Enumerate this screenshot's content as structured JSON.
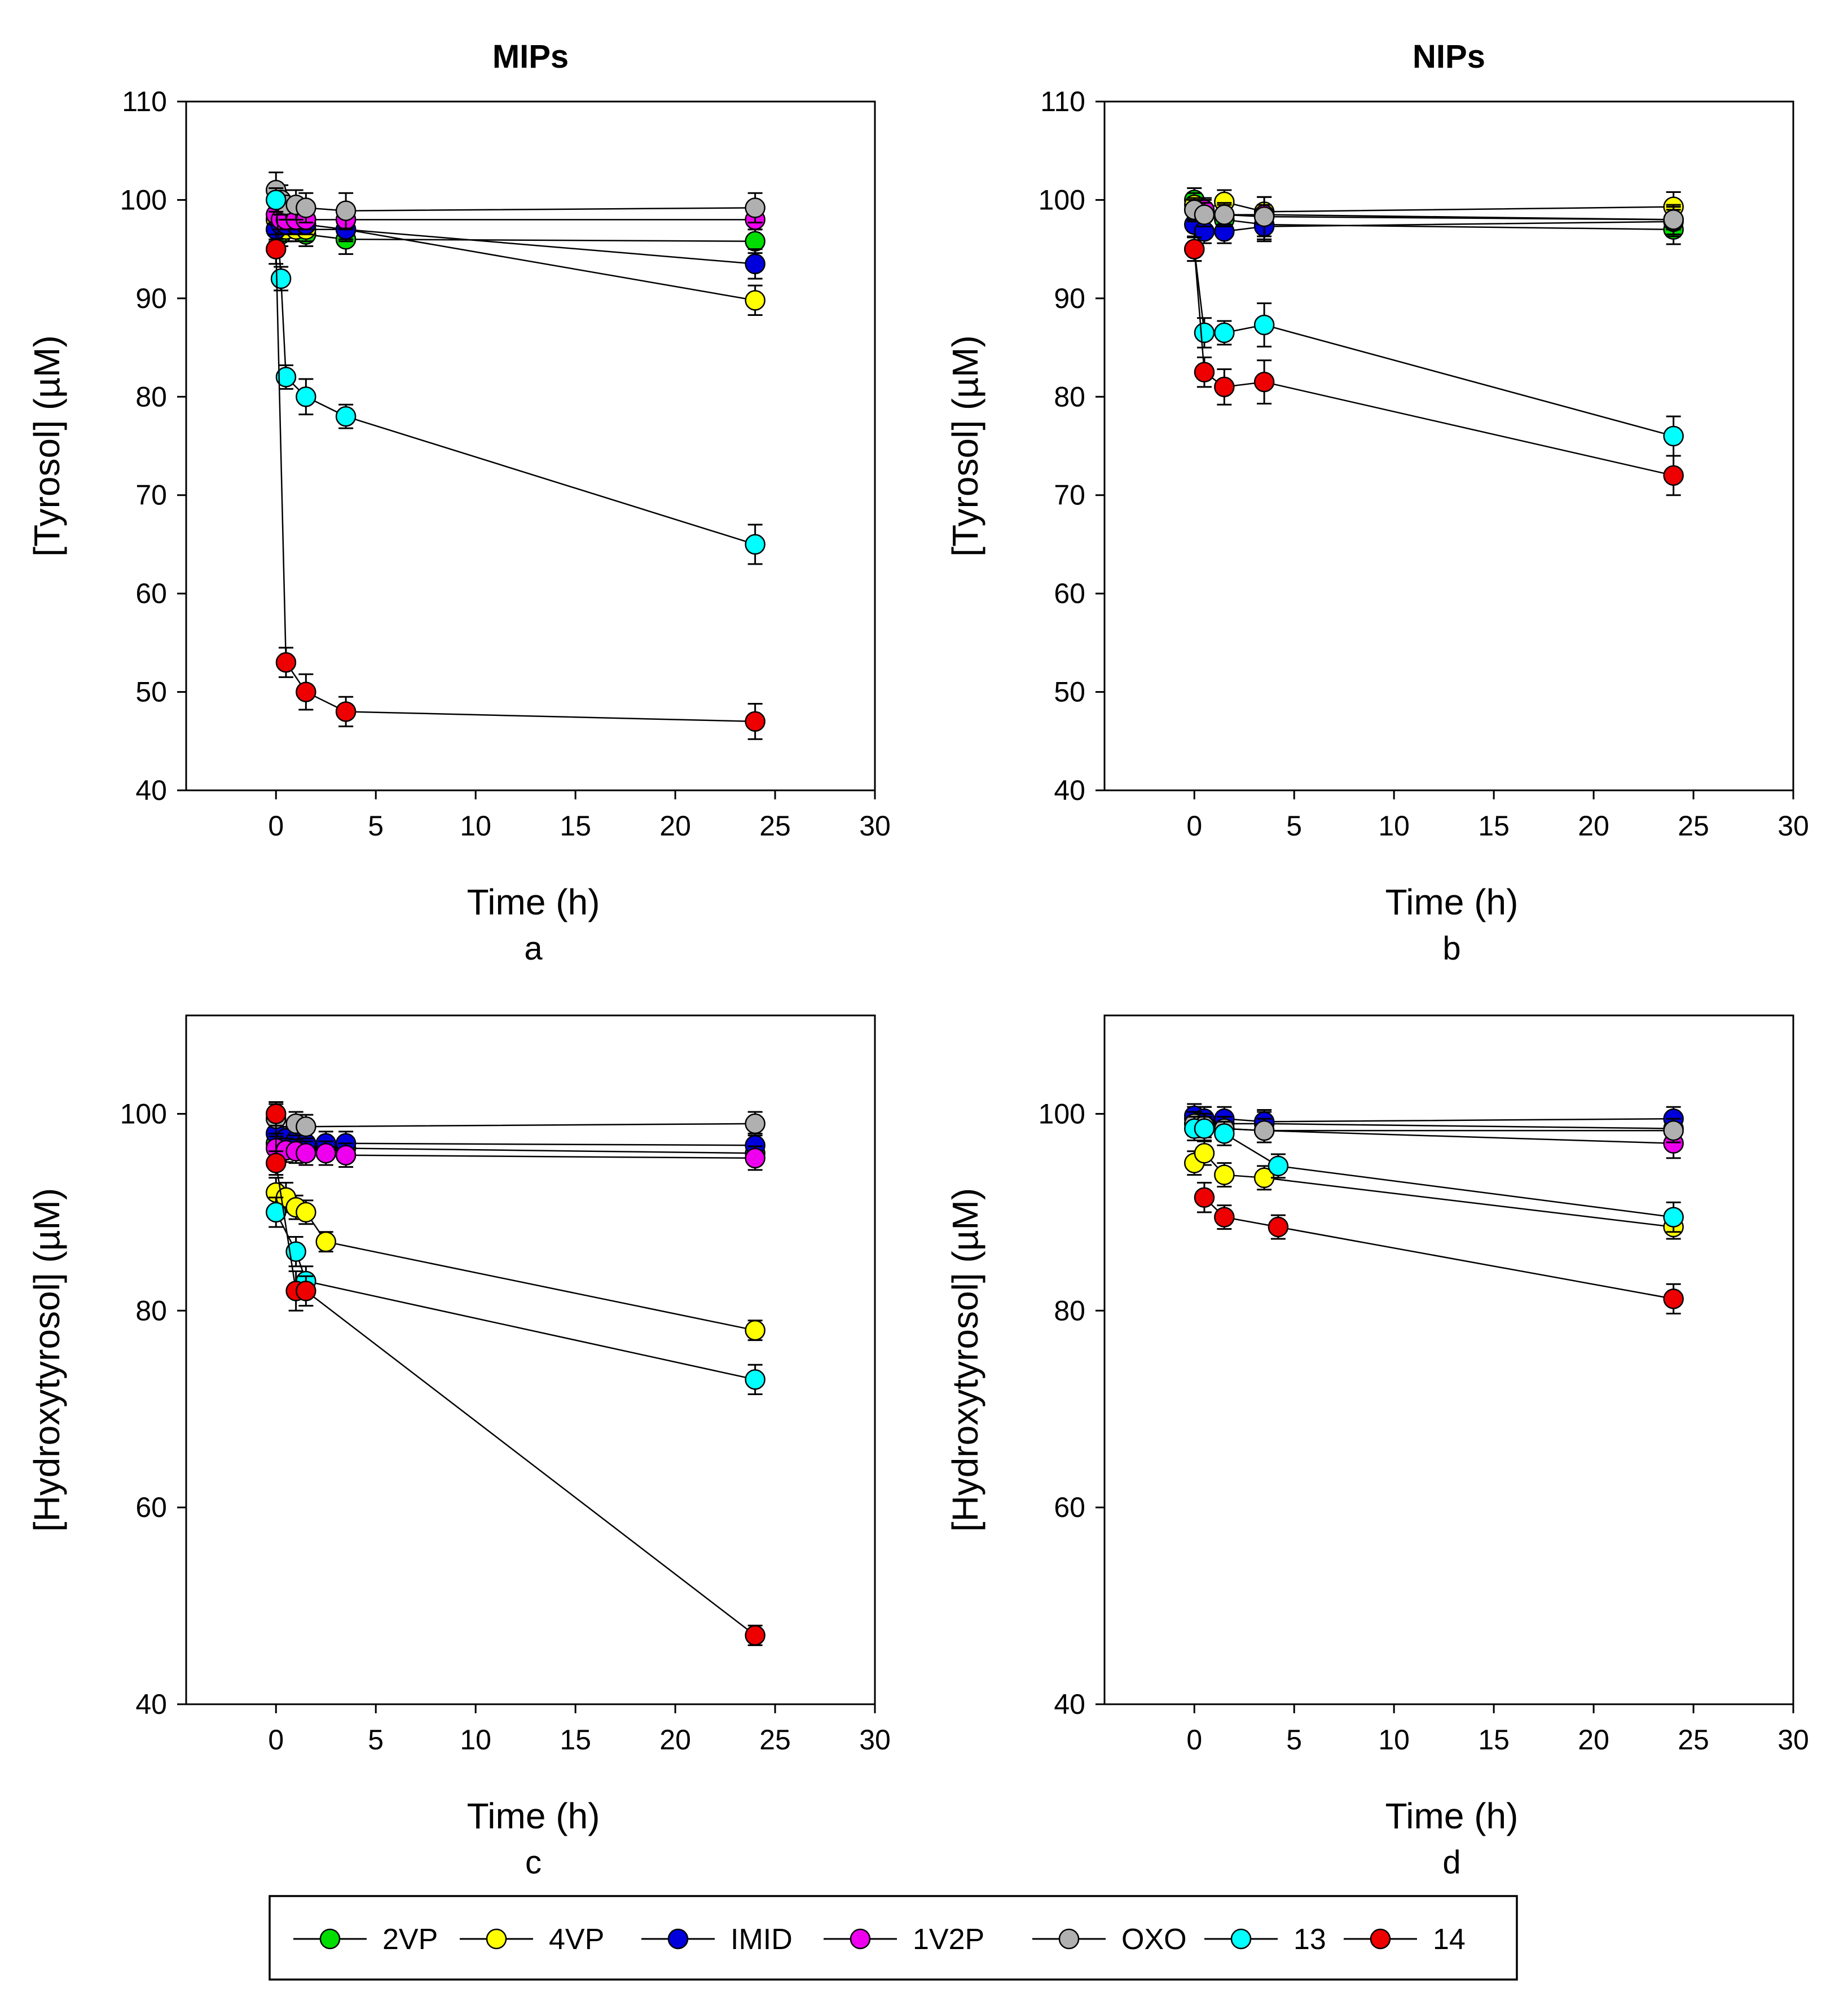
{
  "chart_data": [
    {
      "panel": "a",
      "type": "line",
      "title": "MIPs",
      "xlabel": "Time (h)",
      "ylabel": "[Tyrosol] (µM)",
      "xlim": [
        -4.5,
        30
      ],
      "ylim": [
        40,
        110
      ],
      "xticks": [
        0,
        5,
        10,
        15,
        20,
        25,
        30
      ],
      "yticks": [
        40,
        50,
        60,
        70,
        80,
        90,
        100,
        110
      ],
      "series": [
        {
          "name": "2VP",
          "x": [
            0,
            0.25,
            0.5,
            1,
            1.5,
            3.5,
            24
          ],
          "y": [
            97,
            96.5,
            97,
            97,
            96.5,
            96,
            95.8
          ],
          "err": [
            1.2,
            1.2,
            1.2,
            1.2,
            1.2,
            1.5,
            1.2
          ]
        },
        {
          "name": "4VP",
          "x": [
            0,
            0.25,
            0.5,
            1,
            1.5,
            3.5,
            24
          ],
          "y": [
            98,
            97.5,
            97,
            97,
            97,
            97,
            89.8
          ],
          "err": [
            1.2,
            1.2,
            1.2,
            1.2,
            1.2,
            1.2,
            1.5
          ]
        },
        {
          "name": "IMID",
          "x": [
            0,
            0.25,
            0.5,
            1,
            1.5,
            3.5,
            24
          ],
          "y": [
            97,
            97.5,
            97.5,
            97.5,
            97.5,
            97,
            93.5
          ],
          "err": [
            1,
            1,
            1,
            1,
            1,
            1,
            1.5
          ]
        },
        {
          "name": "1V2P",
          "x": [
            0,
            0.25,
            0.5,
            1,
            1.5,
            3.5,
            24
          ],
          "y": [
            98.5,
            98,
            98,
            98,
            98,
            98,
            98
          ],
          "err": [
            1,
            1,
            1,
            1,
            1,
            1,
            1
          ]
        },
        {
          "name": "OXO",
          "x": [
            0,
            0.25,
            0.5,
            1,
            1.5,
            3.5,
            24
          ],
          "y": [
            101,
            100,
            99.5,
            99.5,
            99.2,
            98.9,
            99.2
          ],
          "err": [
            1.8,
            1.5,
            1.5,
            1.5,
            1.5,
            1.8,
            1.5
          ]
        },
        {
          "name": "13",
          "x": [
            0,
            0.25,
            0.5,
            1.5,
            3.5,
            24
          ],
          "y": [
            100,
            92,
            82,
            80,
            78,
            65
          ],
          "err": [
            1.2,
            1.2,
            1.2,
            1.8,
            1.2,
            2
          ]
        },
        {
          "name": "14",
          "x": [
            0,
            0.5,
            1.5,
            3.5,
            24
          ],
          "y": [
            95,
            53,
            50,
            48,
            47
          ],
          "err": [
            1.5,
            1.5,
            1.8,
            1.5,
            1.8
          ]
        }
      ]
    },
    {
      "panel": "b",
      "type": "line",
      "title": "NIPs",
      "xlabel": "Time (h)",
      "ylabel": "[Tyrosol] (µM)",
      "xlim": [
        -4.5,
        30
      ],
      "ylim": [
        40,
        110
      ],
      "xticks": [
        0,
        5,
        10,
        15,
        20,
        25,
        30
      ],
      "yticks": [
        40,
        50,
        60,
        70,
        80,
        90,
        100,
        110
      ],
      "series": [
        {
          "name": "2VP",
          "x": [
            0,
            0.5,
            1.5,
            3.5,
            24
          ],
          "y": [
            100,
            98.5,
            98,
            97.5,
            97
          ],
          "err": [
            1.2,
            1.2,
            1.2,
            1.5,
            1.5
          ]
        },
        {
          "name": "4VP",
          "x": [
            0,
            0.5,
            1.5,
            3.5,
            24
          ],
          "y": [
            99.5,
            99,
            99.8,
            98.8,
            99.3
          ],
          "err": [
            1.2,
            1.2,
            1.2,
            1.5,
            1.5
          ]
        },
        {
          "name": "IMID",
          "x": [
            0,
            0.5,
            1.5,
            3.5,
            24
          ],
          "y": [
            97.5,
            96.8,
            96.8,
            97.3,
            97.8
          ],
          "err": [
            1.2,
            1.2,
            1.2,
            1.5,
            1.5
          ]
        },
        {
          "name": "1V2P",
          "x": [
            0,
            0.5,
            1.5,
            3.5,
            24
          ],
          "y": [
            99,
            99,
            98.5,
            98.5,
            98
          ],
          "err": [
            1,
            1,
            1,
            1,
            1
          ]
        },
        {
          "name": "OXO",
          "x": [
            0,
            0.5,
            1.5,
            3.5,
            24
          ],
          "y": [
            99,
            98.5,
            98.5,
            98.3,
            98
          ],
          "err": [
            1.2,
            1.2,
            1.2,
            2,
            1.5
          ]
        },
        {
          "name": "13",
          "x": [
            0,
            0.5,
            1.5,
            3.5,
            24
          ],
          "y": [
            95,
            86.5,
            86.5,
            87.3,
            76
          ],
          "err": [
            1.2,
            1.5,
            1.2,
            2.2,
            2
          ]
        },
        {
          "name": "14",
          "x": [
            0,
            0.5,
            1.5,
            3.5,
            24
          ],
          "y": [
            95,
            82.5,
            81,
            81.5,
            72
          ],
          "err": [
            1.2,
            1.5,
            1.8,
            2.2,
            2
          ]
        }
      ]
    },
    {
      "panel": "c",
      "type": "line",
      "xlabel": "Time (h)",
      "ylabel": "[Hydroxytyrosol] (µM)",
      "xlim": [
        -4.5,
        30
      ],
      "ylim": [
        40,
        110
      ],
      "xticks": [
        0,
        5,
        10,
        15,
        20,
        25,
        30
      ],
      "yticks": [
        40,
        60,
        80,
        100
      ],
      "series": [
        {
          "name": "2VP",
          "x": [
            0,
            0.5,
            1,
            1.5,
            2.5,
            3.5,
            24
          ],
          "y": [
            97,
            97,
            96.5,
            96.5,
            96.5,
            96.5,
            96
          ],
          "err": [
            1,
            1,
            1,
            1,
            1,
            1,
            1
          ]
        },
        {
          "name": "4VP",
          "x": [
            0,
            0.5,
            1,
            1.5,
            2.5,
            24
          ],
          "y": [
            92,
            91.5,
            90.5,
            90,
            87,
            78
          ],
          "err": [
            1.5,
            1.5,
            1.2,
            1.2,
            1,
            1
          ]
        },
        {
          "name": "IMID",
          "x": [
            0,
            0.5,
            1,
            1.5,
            2.5,
            3.5,
            24
          ],
          "y": [
            98,
            97.5,
            97.3,
            97,
            97,
            97,
            96.8
          ],
          "err": [
            1.5,
            1.2,
            1.2,
            1.2,
            1.2,
            1.2,
            1.2
          ]
        },
        {
          "name": "1V2P",
          "x": [
            0,
            0.5,
            1,
            1.5,
            2.5,
            3.5,
            24
          ],
          "y": [
            96.5,
            96.3,
            96.2,
            96,
            96,
            95.8,
            95.5
          ],
          "err": [
            1.2,
            1.2,
            1.2,
            1.2,
            1.2,
            1.2,
            1.2
          ]
        },
        {
          "name": "OXO",
          "x": [
            0,
            1,
            1.5,
            24
          ],
          "y": [
            99.5,
            99,
            98.7,
            99
          ],
          "err": [
            1.5,
            1.2,
            1.2,
            1.2
          ]
        },
        {
          "name": "13",
          "x": [
            0,
            1,
            1.5,
            24
          ],
          "y": [
            90,
            86,
            83,
            73
          ],
          "err": [
            1.5,
            1.5,
            1.5,
            1.5
          ]
        },
        {
          "name": "14",
          "x": [
            0,
            0,
            1,
            1.5,
            24
          ],
          "y": [
            100,
            95,
            82,
            82,
            47
          ],
          "err": [
            1.2,
            1.2,
            2,
            1.5,
            1
          ]
        }
      ]
    },
    {
      "panel": "d",
      "type": "line",
      "xlabel": "Time (h)",
      "ylabel": "[Hydroxytyrosol] (µM)",
      "xlim": [
        -4.5,
        30
      ],
      "ylim": [
        40,
        110
      ],
      "xticks": [
        0,
        5,
        10,
        15,
        20,
        25,
        30
      ],
      "yticks": [
        40,
        60,
        80,
        100
      ],
      "series": [
        {
          "name": "2VP",
          "x": [
            0,
            0.5,
            1.5,
            3.5,
            24
          ],
          "y": [
            99.5,
            99.5,
            99,
            99,
            98.5
          ],
          "err": [
            1.2,
            1.2,
            1.2,
            1.2,
            1.2
          ]
        },
        {
          "name": "4VP",
          "x": [
            0,
            0.5,
            1.5,
            3.5,
            24
          ],
          "y": [
            95,
            96,
            93.8,
            93.5,
            88.5
          ],
          "err": [
            1.2,
            1.2,
            1.2,
            1.2,
            1.2
          ]
        },
        {
          "name": "IMID",
          "x": [
            0,
            0.5,
            1.5,
            3.5,
            24
          ],
          "y": [
            99.8,
            99.5,
            99.5,
            99.2,
            99.5
          ],
          "err": [
            1.2,
            1.2,
            1.2,
            1.2,
            1.2
          ]
        },
        {
          "name": "1V2P",
          "x": [
            0,
            0.5,
            1.5,
            3.5,
            24
          ],
          "y": [
            99,
            98.8,
            98.5,
            98.3,
            97
          ],
          "err": [
            1.2,
            1.2,
            1.2,
            1.2,
            1.5
          ]
        },
        {
          "name": "OXO",
          "x": [
            0,
            0.5,
            1.5,
            3.5,
            24
          ],
          "y": [
            99,
            98.8,
            98.5,
            98.3,
            98.3
          ],
          "err": [
            1.2,
            1.2,
            1.2,
            1.2,
            1.2
          ]
        },
        {
          "name": "13",
          "x": [
            0,
            0.5,
            1.5,
            4.2,
            24
          ],
          "y": [
            98.5,
            98.5,
            98,
            94.7,
            89.5
          ],
          "err": [
            1.2,
            1.2,
            1.2,
            1.2,
            1.5
          ]
        },
        {
          "name": "14",
          "x": [
            0.5,
            1.5,
            4.2,
            24
          ],
          "y": [
            91.5,
            89.5,
            88.5,
            81.2
          ],
          "err": [
            1.5,
            1.2,
            1.2,
            1.5
          ]
        }
      ]
    }
  ],
  "legend": {
    "entries": [
      {
        "name": "2VP",
        "color": "#00dd00"
      },
      {
        "name": "4VP",
        "color": "#ffff00"
      },
      {
        "name": "IMID",
        "color": "#0000dd"
      },
      {
        "name": "1V2P",
        "color": "#ee00ee"
      },
      {
        "name": "OXO",
        "color": "#b0b0b0"
      },
      {
        "name": "13",
        "color": "#00ffff"
      },
      {
        "name": "14",
        "color": "#ee0000"
      }
    ]
  }
}
